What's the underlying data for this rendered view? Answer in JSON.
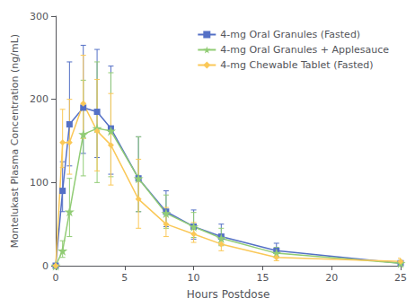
{
  "chart_data": {
    "type": "line",
    "title": "",
    "xlabel": "Hours Postdose",
    "ylabel": "Montelukast Plasma Concentration (ng/mL)",
    "xlim": [
      0,
      25
    ],
    "ylim": [
      0,
      300
    ],
    "xticks": [
      0,
      5,
      10,
      15,
      20,
      25
    ],
    "yticks": [
      0,
      100,
      200,
      300
    ],
    "grid": false,
    "legend": "upper right",
    "series": [
      {
        "name": "4-mg Oral Granules (Fasted)",
        "marker": "square",
        "x": [
          0,
          0.5,
          1,
          2,
          3,
          4,
          6,
          8,
          10,
          12,
          16,
          25
        ],
        "values": [
          0,
          90,
          170,
          190,
          185,
          165,
          105,
          65,
          47,
          35,
          18,
          3
        ],
        "yerr_lo": [
          0,
          25,
          50,
          55,
          55,
          55,
          40,
          18,
          15,
          10,
          7,
          2
        ],
        "yerr_hi": [
          0,
          35,
          75,
          75,
          75,
          75,
          50,
          25,
          20,
          15,
          9,
          3
        ]
      },
      {
        "name": "4-mg Oral Granules + Applesauce",
        "marker": "star",
        "x": [
          0,
          0.5,
          1,
          2,
          3,
          4,
          6,
          8,
          10,
          12,
          16,
          25
        ],
        "values": [
          0,
          18,
          65,
          158,
          165,
          162,
          105,
          63,
          47,
          33,
          15,
          3
        ],
        "yerr_lo": [
          0,
          8,
          30,
          50,
          65,
          55,
          40,
          18,
          13,
          9,
          5,
          2
        ],
        "yerr_hi": [
          0,
          12,
          40,
          65,
          80,
          70,
          50,
          22,
          17,
          12,
          7,
          3
        ]
      },
      {
        "name": "4-mg Chewable Tablet (Fasted)",
        "marker": "diamond",
        "x": [
          0,
          0.5,
          1,
          2,
          3,
          4,
          6,
          8,
          10,
          12,
          16,
          25
        ],
        "values": [
          0,
          148,
          148,
          195,
          162,
          145,
          80,
          50,
          38,
          26,
          10,
          5
        ],
        "yerr_lo": [
          0,
          30,
          38,
          42,
          48,
          48,
          35,
          15,
          10,
          8,
          4,
          2
        ],
        "yerr_hi": [
          0,
          40,
          52,
          58,
          62,
          62,
          48,
          20,
          14,
          12,
          6,
          4
        ]
      }
    ]
  }
}
